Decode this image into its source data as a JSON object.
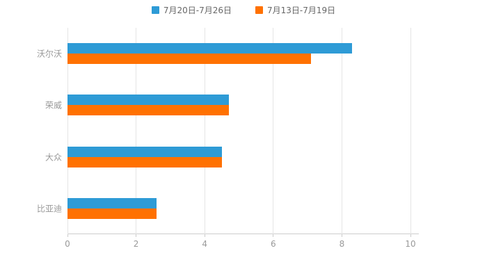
{
  "chart_data": {
    "type": "bar",
    "orientation": "horizontal",
    "title": "",
    "xlabel": "",
    "ylabel": "",
    "categories": [
      "沃尔沃",
      "荣威",
      "大众",
      "比亚迪"
    ],
    "series": [
      {
        "name": "7月20日-7月26日",
        "color": "#2E9BD6",
        "values": [
          8.3,
          4.7,
          4.5,
          2.6
        ]
      },
      {
        "name": "7月13日-7月19日",
        "color": "#FF7101",
        "values": [
          7.1,
          4.7,
          4.5,
          2.6
        ]
      }
    ],
    "xlim": [
      0,
      10
    ],
    "xticks": [
      0,
      2,
      4,
      6,
      8,
      10
    ],
    "grid": true,
    "legend_position": "top",
    "colors": {
      "background": "#ffffff",
      "gridline": "#e5e5e5",
      "axis_line": "#cccccc",
      "tick_label": "#999999",
      "category_label": "#999999",
      "legend_text": "#666666"
    }
  }
}
